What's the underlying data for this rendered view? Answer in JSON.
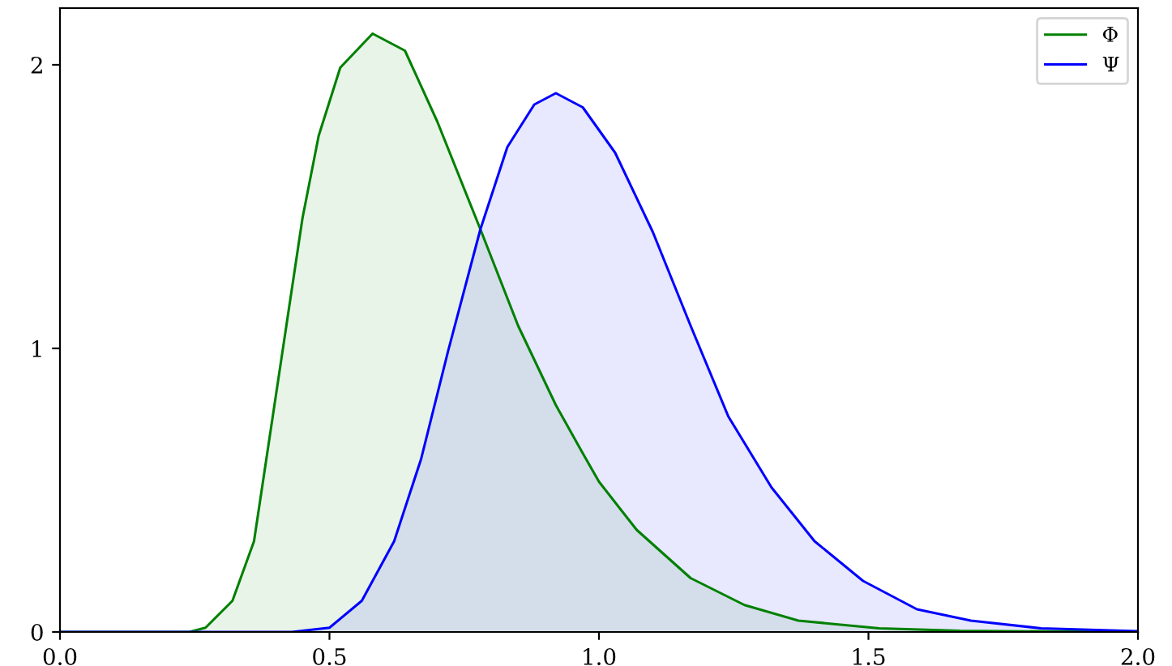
{
  "chart_data": {
    "type": "area",
    "legend": "top right",
    "grid": false,
    "xlim": [
      0,
      2
    ],
    "ylim": [
      0,
      2.2
    ],
    "xticks": [
      {
        "value": 0,
        "label": "0.0"
      },
      0.5,
      {
        "value": 1,
        "label": "1.0"
      },
      1.5,
      {
        "value": 2,
        "label": "2.0"
      }
    ],
    "yticks": [
      0,
      1,
      2
    ],
    "series": [
      {
        "name": "Φ",
        "color": "#008000",
        "x": [
          0,
          0.24,
          0.27,
          0.32,
          0.36,
          0.39,
          0.42,
          0.45,
          0.48,
          0.52,
          0.58,
          0.64,
          0.7,
          0.78,
          0.85,
          0.92,
          0.97,
          1.0,
          1.07,
          1.17,
          1.27,
          1.37,
          1.52,
          1.67,
          2.0
        ],
        "values": [
          0,
          0,
          0.015,
          0.11,
          0.32,
          0.7,
          1.08,
          1.46,
          1.75,
          1.99,
          2.11,
          2.05,
          1.8,
          1.42,
          1.08,
          0.8,
          0.63,
          0.53,
          0.36,
          0.19,
          0.095,
          0.04,
          0.013,
          0.004,
          0
        ]
      },
      {
        "name": "Ψ",
        "color": "#0000ff",
        "x": [
          0,
          0.43,
          0.5,
          0.56,
          0.62,
          0.67,
          0.72,
          0.78,
          0.83,
          0.88,
          0.92,
          0.97,
          1.03,
          1.1,
          1.17,
          1.24,
          1.32,
          1.4,
          1.49,
          1.59,
          1.69,
          1.82,
          2.0
        ],
        "values": [
          0,
          0,
          0.015,
          0.11,
          0.32,
          0.61,
          0.99,
          1.42,
          1.71,
          1.86,
          1.9,
          1.85,
          1.69,
          1.41,
          1.08,
          0.76,
          0.51,
          0.32,
          0.18,
          0.08,
          0.04,
          0.013,
          0.003
        ]
      }
    ]
  }
}
